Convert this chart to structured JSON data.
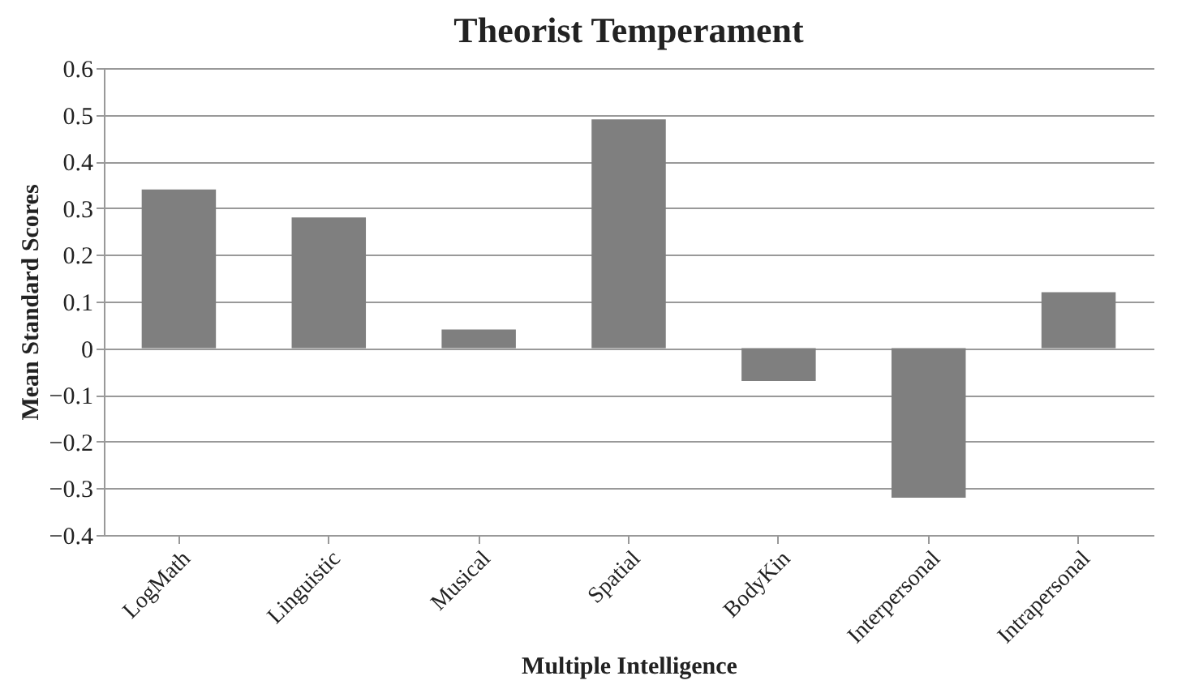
{
  "chart_data": {
    "type": "bar",
    "title": "Theorist Temperament",
    "xlabel": "Multiple Intelligence",
    "ylabel": "Mean Standard Scores",
    "categories": [
      "LogMath",
      "Linguistic",
      "Musical",
      "Spatial",
      "BodyKin",
      "Interpersonal",
      "Intrapersonal"
    ],
    "values": [
      0.34,
      0.28,
      0.04,
      0.49,
      -0.07,
      -0.32,
      0.12
    ],
    "color": "#7f7f7f",
    "ylim": [
      -0.4,
      0.6
    ],
    "yticks": [
      -0.4,
      -0.3,
      -0.2,
      -0.1,
      0,
      0.1,
      0.2,
      0.3,
      0.4,
      0.5,
      0.6
    ],
    "grid": "y"
  }
}
